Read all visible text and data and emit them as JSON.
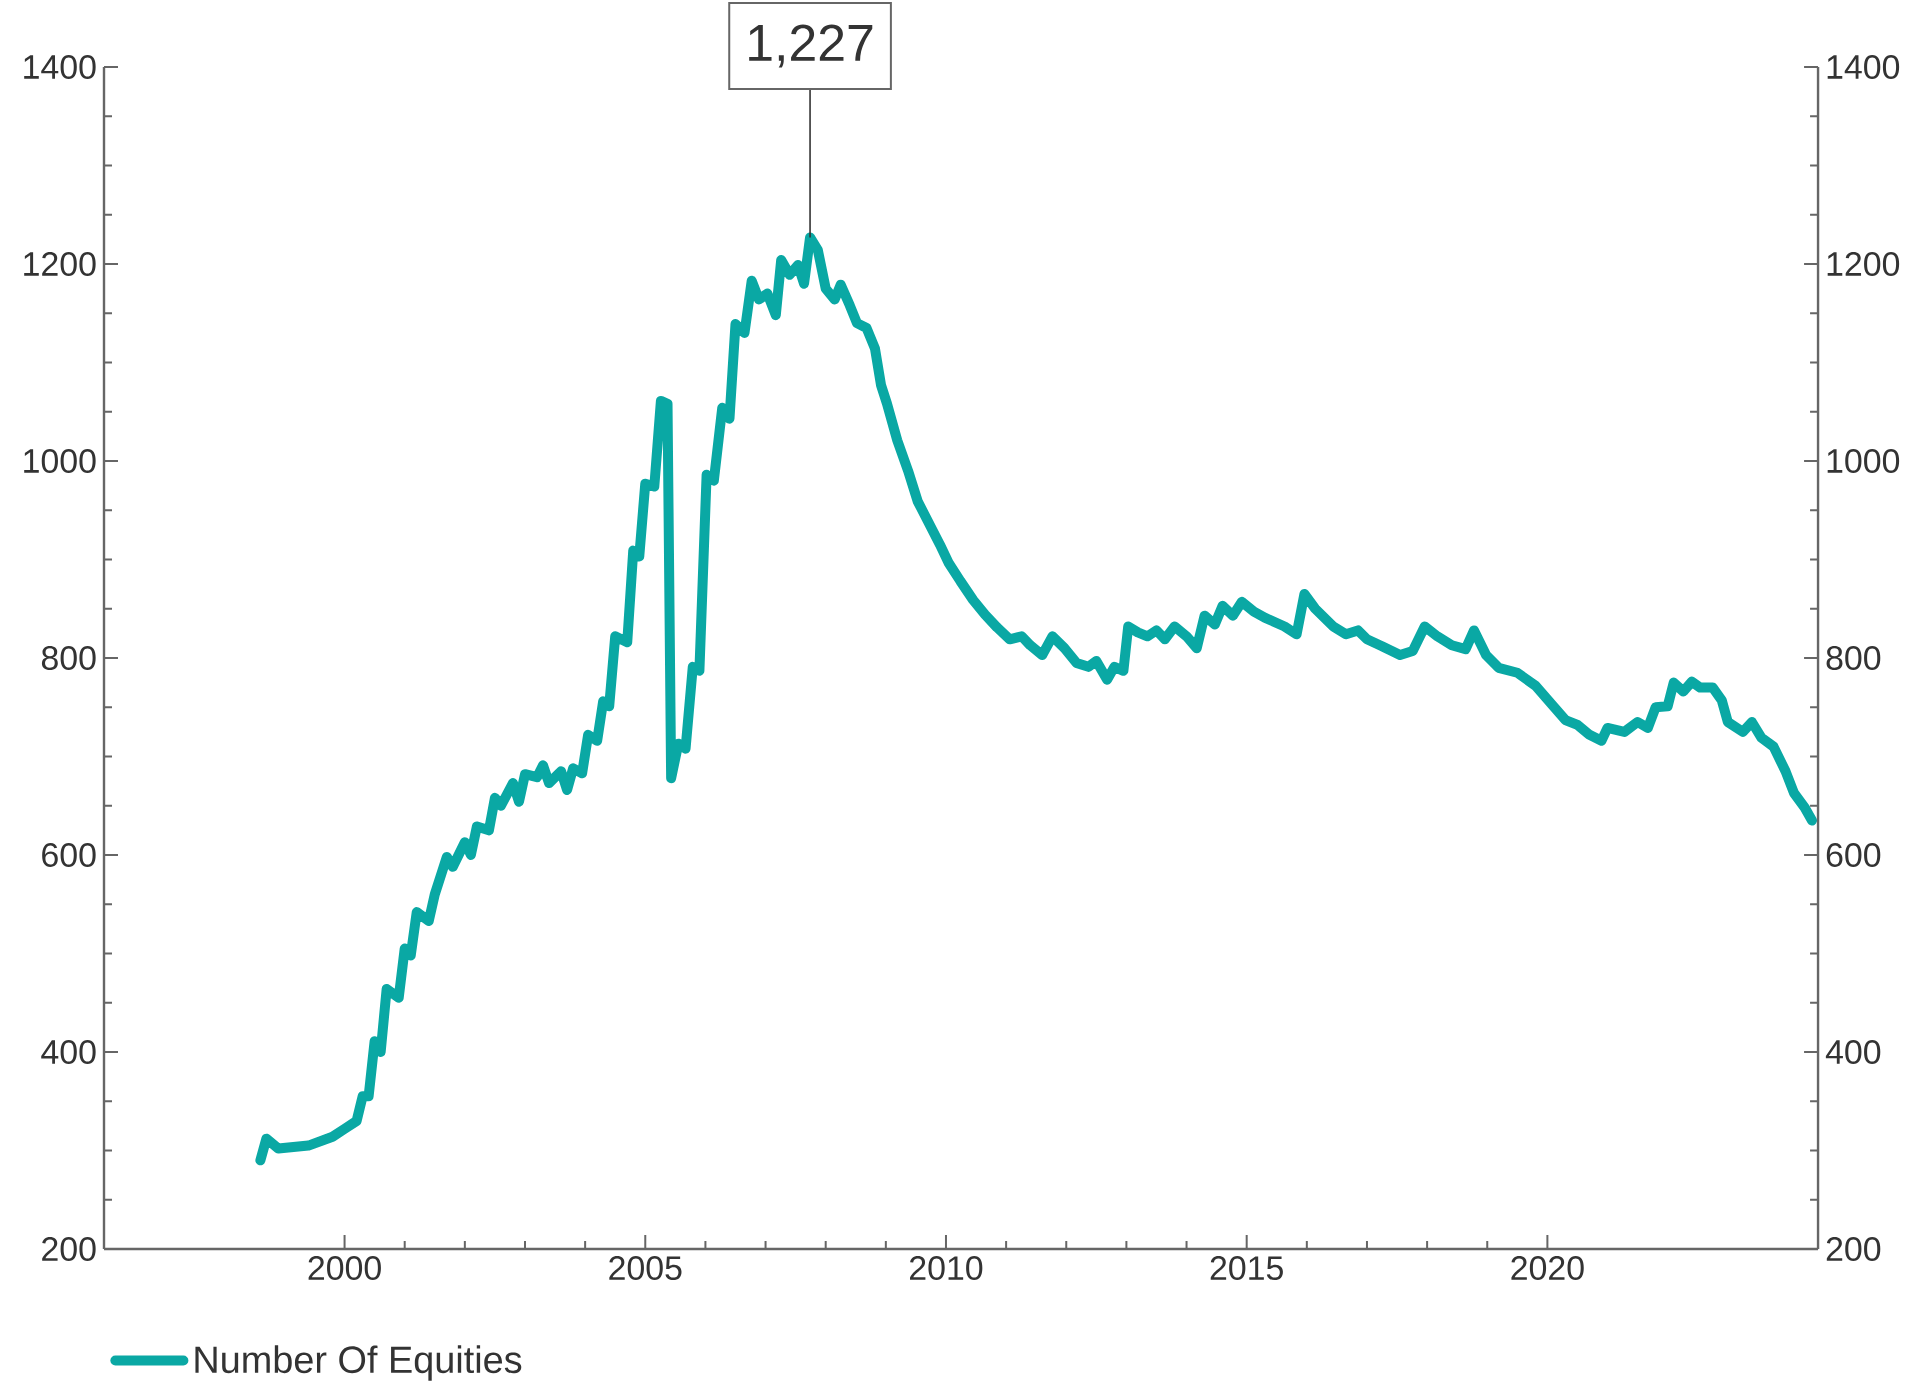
{
  "chart_data": {
    "type": "line",
    "legend": "bottom left",
    "x": [
      1998.6,
      1998.7,
      1998.9,
      1999.4,
      1999.8,
      2000.0,
      2000.2,
      2000.3,
      2000.4,
      2000.5,
      2000.6,
      2000.7,
      2000.9,
      2001.0,
      2001.1,
      2001.2,
      2001.4,
      2001.5,
      2001.7,
      2001.8,
      2002.0,
      2002.1,
      2002.2,
      2002.4,
      2002.5,
      2002.6,
      2002.8,
      2002.9,
      2003.0,
      2003.2,
      2003.3,
      2003.4,
      2003.6,
      2003.7,
      2003.8,
      2003.95,
      2004.05,
      2004.2,
      2004.3,
      2004.4,
      2004.5,
      2004.7,
      2004.8,
      2004.9,
      2005.0,
      2005.15,
      2005.26,
      2005.37,
      2005.43,
      2005.55,
      2005.67,
      2005.79,
      2005.9,
      2006.02,
      2006.14,
      2006.28,
      2006.4,
      2006.5,
      2006.65,
      2006.77,
      2006.89,
      2007.03,
      2007.17,
      2007.26,
      2007.4,
      2007.54,
      2007.64,
      2007.74,
      2007.87,
      2008.0,
      2008.15,
      2008.25,
      2008.4,
      2008.52,
      2008.68,
      2008.82,
      2008.92,
      2009.02,
      2009.19,
      2009.37,
      2009.53,
      2009.74,
      2009.9,
      2010.04,
      2010.24,
      2010.45,
      2010.65,
      2010.85,
      2011.06,
      2011.26,
      2011.4,
      2011.6,
      2011.77,
      2011.97,
      2012.17,
      2012.37,
      2012.5,
      2012.68,
      2012.8,
      2012.95,
      2013.03,
      2013.19,
      2013.35,
      2013.5,
      2013.64,
      2013.8,
      2014.0,
      2014.17,
      2014.3,
      2014.47,
      2014.6,
      2014.77,
      2014.92,
      2015.12,
      2015.3,
      2015.63,
      2015.83,
      2015.96,
      2016.14,
      2016.44,
      2016.65,
      2016.85,
      2017.0,
      2017.25,
      2017.55,
      2017.76,
      2017.96,
      2018.17,
      2018.41,
      2018.64,
      2018.78,
      2018.98,
      2019.19,
      2019.5,
      2019.8,
      2020.1,
      2020.3,
      2020.5,
      2020.7,
      2020.9,
      2021.0,
      2021.28,
      2021.5,
      2021.67,
      2021.8,
      2022.0,
      2022.1,
      2022.26,
      2022.4,
      2022.54,
      2022.75,
      2022.9,
      2023.0,
      2023.25,
      2023.4,
      2023.56,
      2023.76,
      2023.96,
      2024.1,
      2024.28,
      2024.4
    ],
    "series": [
      {
        "name": "Number Of Equities",
        "color": "#0aa8a4",
        "values": [
          290,
          312,
          302,
          305,
          314,
          322,
          330,
          355,
          355,
          411,
          400,
          464,
          455,
          505,
          498,
          542,
          533,
          560,
          598,
          588,
          613,
          600,
          629,
          625,
          658,
          650,
          673,
          654,
          682,
          679,
          691,
          673,
          685,
          666,
          688,
          683,
          722,
          716,
          756,
          751,
          822,
          816,
          909,
          903,
          977,
          974,
          1061,
          1058,
          678,
          713,
          708,
          791,
          787,
          986,
          980,
          1054,
          1043,
          1139,
          1130,
          1183,
          1164,
          1170,
          1148,
          1204,
          1189,
          1199,
          1180,
          1227,
          1214,
          1175,
          1164,
          1179,
          1158,
          1140,
          1135,
          1114,
          1077,
          1058,
          1021,
          990,
          959,
          934,
          915,
          897,
          878,
          859,
          844,
          831,
          819,
          822,
          813,
          803,
          822,
          810,
          795,
          791,
          797,
          778,
          791,
          787,
          832,
          826,
          822,
          828,
          819,
          832,
          822,
          810,
          843,
          834,
          853,
          843,
          857,
          847,
          841,
          832,
          824,
          865,
          850,
          832,
          824,
          828,
          819,
          812,
          803,
          807,
          832,
          822,
          813,
          809,
          828,
          803,
          790,
          785,
          772,
          751,
          737,
          732,
          722,
          716,
          729,
          725,
          735,
          729,
          750,
          751,
          775,
          766,
          776,
          770,
          770,
          757,
          735,
          725,
          735,
          719,
          710,
          685,
          663,
          648,
          635
        ]
      }
    ],
    "xlim": [
      1996,
      2024.5
    ],
    "xticks": [
      2000,
      2005,
      2010,
      2015,
      2020
    ],
    "ylim": [
      200,
      1400
    ],
    "yticks": [
      200,
      400,
      600,
      800,
      1000,
      1200,
      1400
    ],
    "y2lim": [
      200,
      1400
    ],
    "y2ticks": [
      200,
      400,
      600,
      800,
      1000,
      1200,
      1400
    ],
    "annotations": [
      {
        "text": "1,227",
        "x": 2007.74,
        "y": 1227
      }
    ]
  }
}
